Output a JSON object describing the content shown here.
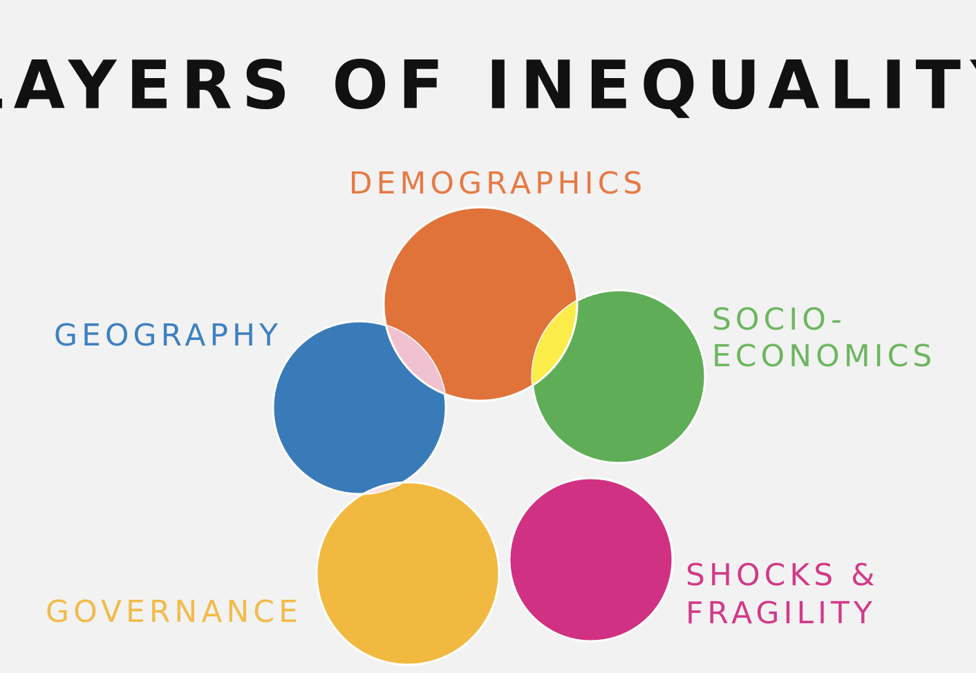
{
  "title": "LAYERS OF INEQUALITY",
  "nodes": [
    {
      "label_lines": [
        "DEMOGRAPHICS"
      ]
    },
    {
      "label_lines": [
        "SOCIO-",
        "ECONOMICS"
      ]
    },
    {
      "label_lines": [
        "SHOCKS &",
        "FRAGILITY"
      ]
    },
    {
      "label_lines": [
        "GOVERNANCE"
      ]
    },
    {
      "label_lines": [
        "GEOGRAPHY"
      ]
    }
  ]
}
